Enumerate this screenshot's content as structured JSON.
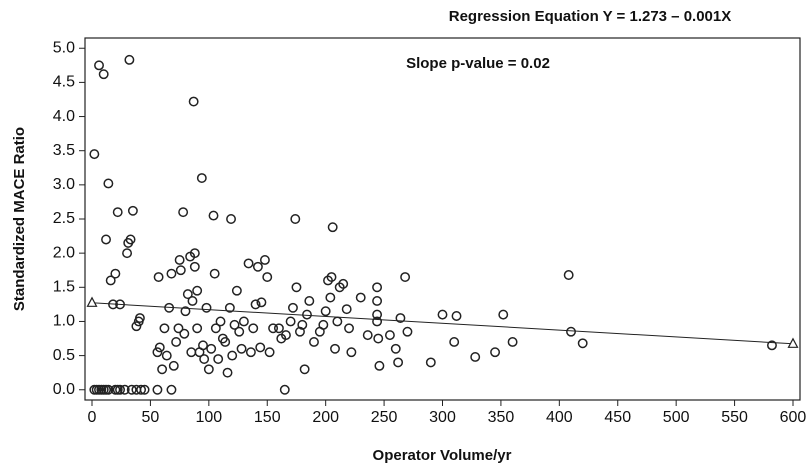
{
  "chart_data": {
    "type": "scatter",
    "title": "Regression Equation Y = 1.273 – 0.001X",
    "annotation": "Slope p-value = 0.02",
    "xlabel": "Operator Volume/yr",
    "ylabel": "Standardized MACE Ratio",
    "xlim": [
      -6,
      606
    ],
    "ylim": [
      -0.15,
      5.15
    ],
    "xticks": [
      0,
      50,
      100,
      150,
      200,
      250,
      300,
      350,
      400,
      450,
      500,
      550,
      600
    ],
    "yticks": [
      {
        "value": 0,
        "label": "0.0"
      },
      0.5,
      {
        "value": 1,
        "label": "1.0"
      },
      1.5,
      {
        "value": 2,
        "label": "2.0"
      },
      2.5,
      {
        "value": 3,
        "label": "3.0"
      },
      3.5,
      {
        "value": 4,
        "label": "4.0"
      },
      4.5,
      {
        "value": 5,
        "label": "5.0"
      }
    ],
    "color": "#222222",
    "x": [
      2,
      4,
      6,
      8,
      10,
      12,
      14,
      20,
      22,
      24,
      28,
      34,
      38,
      42,
      45,
      56,
      68,
      2,
      6,
      10,
      12,
      14,
      16,
      18,
      20,
      22,
      24,
      30,
      31,
      32,
      33,
      35,
      38,
      40,
      41,
      56,
      57,
      58,
      60,
      62,
      64,
      66,
      68,
      70,
      72,
      74,
      75,
      76,
      78,
      79,
      80,
      82,
      84,
      85,
      86,
      87,
      88,
      88,
      90,
      90,
      92,
      94,
      95,
      96,
      98,
      100,
      102,
      104,
      105,
      106,
      108,
      110,
      112,
      114,
      116,
      118,
      119,
      120,
      122,
      124,
      126,
      128,
      130,
      134,
      136,
      138,
      140,
      142,
      144,
      145,
      148,
      150,
      152,
      155,
      160,
      162,
      165,
      166,
      170,
      172,
      174,
      175,
      178,
      180,
      182,
      184,
      186,
      190,
      195,
      198,
      200,
      202,
      204,
      205,
      206,
      208,
      210,
      212,
      215,
      218,
      220,
      222,
      230,
      236,
      244,
      244,
      244,
      244,
      245,
      246,
      255,
      260,
      262,
      264,
      268,
      270,
      290,
      300,
      310,
      312,
      328,
      345,
      352,
      360,
      408,
      410,
      420,
      582
    ],
    "values": [
      0,
      0,
      0,
      0,
      0,
      0,
      0,
      0,
      0,
      0,
      0,
      0,
      0,
      0,
      0,
      0,
      0,
      3.45,
      4.75,
      4.62,
      2.2,
      3.02,
      1.6,
      1.25,
      1.7,
      2.6,
      1.25,
      2.0,
      2.15,
      4.83,
      2.2,
      2.62,
      0.93,
      1.0,
      1.05,
      0.55,
      1.65,
      0.62,
      0.3,
      0.9,
      0.5,
      1.2,
      1.7,
      0.35,
      0.7,
      0.9,
      1.9,
      1.75,
      2.6,
      0.82,
      1.15,
      1.4,
      1.95,
      0.55,
      1.3,
      4.22,
      1.8,
      2.0,
      1.45,
      0.9,
      0.55,
      3.1,
      0.65,
      0.45,
      1.2,
      0.3,
      0.6,
      2.55,
      1.7,
      0.9,
      0.45,
      1.0,
      0.75,
      0.7,
      0.25,
      1.2,
      2.5,
      0.5,
      0.95,
      1.45,
      0.85,
      0.6,
      1.0,
      1.85,
      0.55,
      0.9,
      1.25,
      1.8,
      0.62,
      1.28,
      1.9,
      1.65,
      0.55,
      0.9,
      0.9,
      0.75,
      0,
      0.8,
      1.0,
      1.2,
      2.5,
      1.5,
      0.85,
      0.95,
      0.3,
      1.1,
      1.3,
      0.7,
      0.85,
      0.95,
      1.15,
      1.6,
      1.35,
      1.65,
      2.38,
      0.6,
      1.0,
      1.5,
      1.55,
      1.18,
      0.9,
      0.55,
      1.35,
      0.8,
      1.5,
      1.3,
      1.1,
      1.0,
      0.75,
      0.35,
      0.8,
      0.6,
      0.4,
      1.05,
      1.65,
      0.85,
      0.4,
      1.1,
      0.7,
      1.08,
      0.48,
      0.55,
      1.1,
      0.7,
      1.68,
      0.85,
      0.68,
      0.65
    ],
    "fit": {
      "x": [
        0,
        600
      ],
      "values": [
        1.273,
        0.673
      ]
    }
  }
}
